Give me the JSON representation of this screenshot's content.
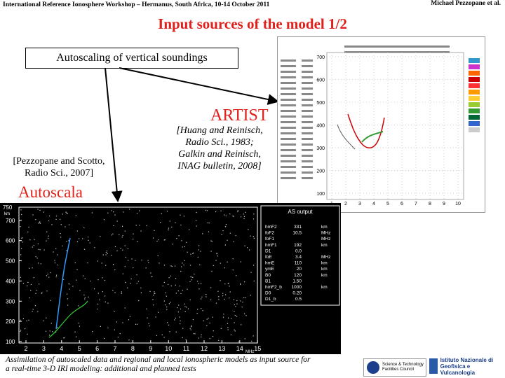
{
  "header": {
    "left": "International Reference Ionosphere Workshop – Hermanus, South Africa, 10-14 October 2011",
    "right": "Michael Pezzopane et al."
  },
  "title": "Input sources of the model 1/2",
  "box": "Autoscaling of vertical soundings",
  "artist": {
    "label": "ARTIST",
    "reference": [
      "[Huang and Reinisch,",
      "Radio Sci., 1983;",
      "Galkin and Reinisch,",
      "INAG bulletin, 2008]"
    ],
    "figure": {
      "yticks": [
        700,
        600,
        500,
        400,
        300,
        200,
        100
      ],
      "xticks": [
        1,
        2,
        3,
        4,
        5,
        6,
        7,
        8,
        9,
        10
      ]
    }
  },
  "autoscala": {
    "label": "Autoscala",
    "reference": [
      "[Pezzopane and Scotto,",
      "Radio Sci., 2007]"
    ],
    "figure": {
      "y_unit": "km",
      "ytop": 750,
      "yticks": [
        700,
        600,
        500,
        400,
        300,
        200,
        100
      ],
      "xticks": [
        2,
        3,
        4,
        5,
        6,
        7,
        8,
        9,
        10,
        11,
        12,
        13,
        14,
        15
      ],
      "x_unit": "MHz",
      "output_title": "AS output",
      "output_rows": [
        [
          "hmF2",
          "331",
          "km"
        ],
        [
          "foF2",
          "10.5",
          "MHz"
        ],
        [
          "foF1",
          "",
          "MHz"
        ],
        [
          "hmF1",
          "192",
          "km"
        ],
        [
          "D1",
          "0.0",
          ""
        ],
        [
          "foE",
          "3.4",
          "MHz"
        ],
        [
          "hmE",
          "110",
          "km"
        ],
        [
          "ymE",
          "20",
          "km"
        ],
        [
          "B0",
          "120",
          "km"
        ],
        [
          "B1",
          "1.50",
          ""
        ],
        [
          "hmF2_b",
          "1000",
          "km"
        ],
        [
          "D0",
          "0.20",
          ""
        ],
        [
          "D1_b",
          "0.5",
          ""
        ]
      ]
    }
  },
  "caption": [
    "Assimilation of autoscaled data and regional and local ionospheric models as input source for",
    "a real-time 3-D IRI modeling: additional and planned tests"
  ],
  "logos": [
    "Science & Technology Facilities Council",
    "Istituto Nazionale di Geofisica e Vulcanologia"
  ]
}
